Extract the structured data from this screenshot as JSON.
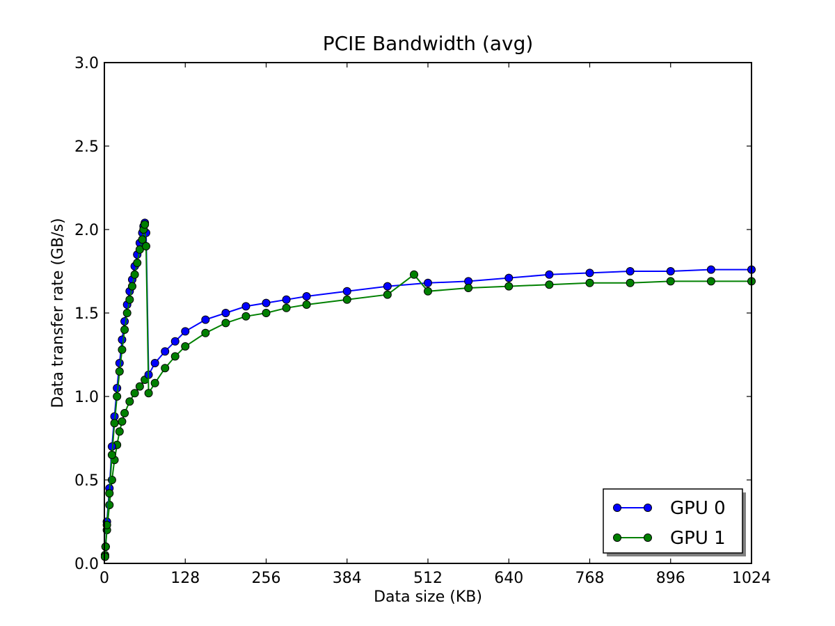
{
  "chart_data": {
    "type": "line",
    "title": "PCIE Bandwidth (avg)",
    "xlabel": "Data size (KB)",
    "ylabel": "Data transfer rate (GB/s)",
    "xlim": [
      0,
      1024
    ],
    "ylim": [
      0,
      3.0
    ],
    "xticks": [
      0,
      128,
      256,
      384,
      512,
      640,
      768,
      896,
      1024
    ],
    "xtick_labels": [
      "0",
      "128",
      "256",
      "384",
      "512",
      "640",
      "768",
      "896",
      "1024"
    ],
    "yticks": [
      0.0,
      0.5,
      1.0,
      1.5,
      2.0,
      2.5,
      3.0
    ],
    "ytick_labels": [
      "0.0",
      "0.5",
      "1.0",
      "1.5",
      "2.0",
      "2.5",
      "3.0"
    ],
    "grid": false,
    "legend_position": "bottom-right",
    "series": [
      {
        "name": "GPU 0",
        "color": "#0000ff",
        "marker": "circle",
        "x": [
          1,
          2,
          4,
          8,
          12,
          16,
          20,
          24,
          28,
          32,
          36,
          40,
          44,
          48,
          52,
          56,
          60,
          62,
          64,
          66,
          70,
          80,
          96,
          112,
          128,
          160,
          192,
          224,
          256,
          288,
          320,
          384,
          448,
          512,
          576,
          640,
          704,
          768,
          832,
          896,
          960,
          1024
        ],
        "y": [
          0.04,
          0.1,
          0.25,
          0.45,
          0.7,
          0.88,
          1.05,
          1.2,
          1.34,
          1.45,
          1.55,
          1.63,
          1.7,
          1.78,
          1.85,
          1.92,
          1.98,
          2.02,
          2.04,
          1.98,
          1.13,
          1.2,
          1.27,
          1.33,
          1.39,
          1.46,
          1.5,
          1.54,
          1.56,
          1.58,
          1.6,
          1.63,
          1.66,
          1.68,
          1.69,
          1.71,
          1.73,
          1.74,
          1.75,
          1.75,
          1.76,
          1.76
        ]
      },
      {
        "name": "GPU 1",
        "color": "#008000",
        "marker": "circle",
        "x": [
          1,
          2,
          4,
          8,
          12,
          16,
          20,
          24,
          28,
          32,
          36,
          40,
          44,
          48,
          52,
          56,
          60,
          62,
          64,
          66,
          70,
          80,
          96,
          112,
          128,
          160,
          192,
          224,
          256,
          288,
          320,
          384,
          448,
          490,
          512,
          576,
          640,
          704,
          768,
          832,
          896,
          960,
          1024
        ],
        "y": [
          0.04,
          0.1,
          0.23,
          0.42,
          0.65,
          0.84,
          1.0,
          1.15,
          1.28,
          1.4,
          1.5,
          1.58,
          1.66,
          1.73,
          1.8,
          1.88,
          1.94,
          2.0,
          2.03,
          1.9,
          1.02,
          1.08,
          1.17,
          1.24,
          1.3,
          1.38,
          1.44,
          1.48,
          1.5,
          1.53,
          1.55,
          1.58,
          1.61,
          1.73,
          1.63,
          1.65,
          1.66,
          1.67,
          1.68,
          1.68,
          1.69,
          1.69,
          1.69
        ]
      }
    ],
    "lower_branch": {
      "x": [
        1,
        2,
        4,
        8,
        12,
        16,
        20,
        24,
        28,
        32,
        40,
        48,
        56,
        64
      ],
      "y": [
        0.05,
        0.1,
        0.2,
        0.35,
        0.5,
        0.62,
        0.71,
        0.79,
        0.85,
        0.9,
        0.97,
        1.02,
        1.06,
        1.1
      ]
    }
  }
}
